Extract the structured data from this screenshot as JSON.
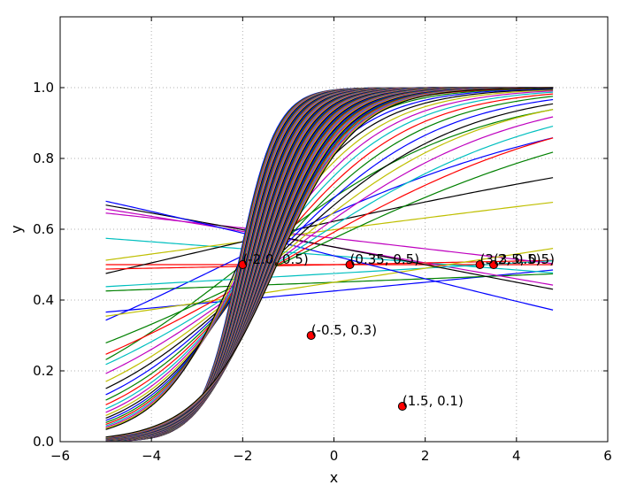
{
  "chart_data": {
    "type": "line",
    "title": "",
    "xlabel": "x",
    "ylabel": "y",
    "xlim": [
      -6,
      6
    ],
    "ylim": [
      0,
      1.2
    ],
    "x_ticks": [
      -6,
      -4,
      -2,
      0,
      2,
      4,
      6
    ],
    "x_tick_labels": [
      "−6",
      "−4",
      "−2",
      "0",
      "2",
      "4",
      "6"
    ],
    "y_ticks": [
      0.0,
      0.2,
      0.4,
      0.6,
      0.8,
      1.0
    ],
    "y_tick_labels": [
      "0.0",
      "0.2",
      "0.4",
      "0.6",
      "0.8",
      "1.0"
    ],
    "grid": true,
    "curve_x_range": [
      -5,
      4.8
    ],
    "series_colors": [
      "#0000ff",
      "#008000",
      "#ff0000",
      "#00bfbf",
      "#bf00bf",
      "#bfbf00",
      "#000000"
    ],
    "curve_family": "logistic curves 1/(1+exp(-(a + b*x))) drawn as many overlapping series",
    "curve_params": [
      {
        "a": -0.3,
        "b": 0.05
      },
      {
        "a": -0.2,
        "b": 0.02
      },
      {
        "a": 0.0,
        "b": 0.0
      },
      {
        "a": 0.1,
        "b": -0.04
      },
      {
        "a": 0.2,
        "b": -0.09
      },
      {
        "a": 0.4,
        "b": 0.07
      },
      {
        "a": 0.5,
        "b": 0.12
      },
      {
        "a": 0.6,
        "b": 0.25
      },
      {
        "a": 0.8,
        "b": 0.4
      },
      {
        "a": 0.0,
        "b": 0.01
      },
      {
        "a": -0.1,
        "b": 0.03
      },
      {
        "a": 0.3,
        "b": -0.06
      },
      {
        "a": -0.2,
        "b": 0.08
      },
      {
        "a": 0.2,
        "b": -0.1
      },
      {
        "a": 0.1,
        "b": -0.13
      }
    ],
    "steep_curves": {
      "count": 70,
      "center_start": -2.1,
      "center_end": -1.25,
      "slope_start": 2.4,
      "slope_end": 1.15
    },
    "points": [
      {
        "x": -2.0,
        "y": 0.5,
        "label": "(-2.0, 0.5)"
      },
      {
        "x": 0.35,
        "y": 0.5,
        "label": "(0.35, 0.5)"
      },
      {
        "x": 3.2,
        "y": 0.5,
        "label": "(3.2, 0.5)"
      },
      {
        "x": 3.5,
        "y": 0.5,
        "label": "(3.5, 0.5)"
      },
      {
        "x": -0.5,
        "y": 0.3,
        "label": "(-0.5, 0.3)"
      },
      {
        "x": 1.5,
        "y": 0.1,
        "label": "(1.5, 0.1)"
      }
    ],
    "point_color": "#ff0000"
  }
}
